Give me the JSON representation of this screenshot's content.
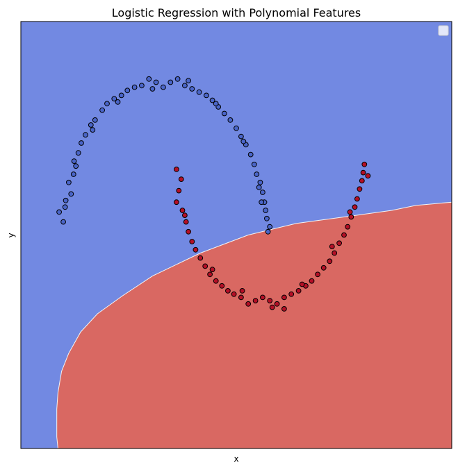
{
  "chart_data": {
    "type": "scatter",
    "title": "Logistic Regression with Polynomial Features",
    "xlabel": "x",
    "ylabel": "y",
    "xlim": [
      -1.3,
      2.3
    ],
    "ylim": [
      -1.2,
      1.4
    ],
    "xticks_visible": false,
    "yticks_visible": false,
    "grid": false,
    "legend": {
      "placement": "top-right",
      "entries": []
    },
    "background_regions": [
      {
        "class": 0,
        "color": "#7289e2"
      },
      {
        "class": 1,
        "color": "#d96862"
      }
    ],
    "decision_boundary": [
      [
        -0.99,
        -1.2
      ],
      [
        -1.0,
        -1.13
      ],
      [
        -1.0,
        -0.96
      ],
      [
        -0.99,
        -0.86
      ],
      [
        -0.96,
        -0.73
      ],
      [
        -0.9,
        -0.62
      ],
      [
        -0.8,
        -0.49
      ],
      [
        -0.66,
        -0.38
      ],
      [
        -0.45,
        -0.27
      ],
      [
        -0.2,
        -0.15
      ],
      [
        0.2,
        -0.01
      ],
      [
        0.6,
        0.1
      ],
      [
        1.0,
        0.17
      ],
      [
        1.4,
        0.21
      ],
      [
        1.8,
        0.25
      ],
      [
        2.0,
        0.28
      ],
      [
        2.3,
        0.3
      ]
    ],
    "series": [
      {
        "class": 0,
        "color": "#4a65c8",
        "points": [
          [
            -0.945,
            0.18
          ],
          [
            -0.925,
            0.31
          ],
          [
            -0.9,
            0.42
          ],
          [
            -0.855,
            0.55
          ],
          [
            -0.795,
            0.66
          ],
          [
            -0.715,
            0.77
          ],
          [
            -0.62,
            0.86
          ],
          [
            -0.52,
            0.93
          ],
          [
            -0.41,
            0.98
          ],
          [
            -0.29,
            1.01
          ],
          [
            -0.17,
            1.03
          ],
          [
            -0.05,
            1.03
          ],
          [
            0.07,
            1.01
          ],
          [
            0.19,
            0.97
          ],
          [
            0.3,
            0.92
          ],
          [
            0.4,
            0.84
          ],
          [
            0.5,
            0.75
          ],
          [
            0.58,
            0.65
          ],
          [
            0.65,
            0.53
          ],
          [
            0.7,
            0.42
          ],
          [
            0.735,
            0.3
          ],
          [
            0.755,
            0.2
          ],
          [
            0.765,
            0.12
          ],
          [
            -0.98,
            0.24
          ],
          [
            -0.88,
            0.35
          ],
          [
            -0.86,
            0.47
          ],
          [
            -0.82,
            0.6
          ],
          [
            -0.76,
            0.71
          ],
          [
            -0.68,
            0.8
          ],
          [
            -0.58,
            0.9
          ],
          [
            -0.46,
            0.95
          ],
          [
            -0.35,
            1.0
          ],
          [
            -0.23,
            1.05
          ],
          [
            -0.11,
            1.0
          ],
          [
            0.01,
            1.05
          ],
          [
            0.13,
            0.99
          ],
          [
            0.25,
            0.95
          ],
          [
            0.35,
            0.88
          ],
          [
            0.45,
            0.8
          ],
          [
            0.54,
            0.7
          ],
          [
            0.62,
            0.59
          ],
          [
            0.67,
            0.47
          ],
          [
            0.72,
            0.36
          ],
          [
            0.745,
            0.25
          ],
          [
            -0.93,
            0.27
          ],
          [
            -0.84,
            0.52
          ],
          [
            -0.7,
            0.74
          ],
          [
            -0.49,
            0.91
          ],
          [
            -0.2,
            0.99
          ],
          [
            0.1,
            1.04
          ],
          [
            0.33,
            0.9
          ],
          [
            0.56,
            0.67
          ],
          [
            0.69,
            0.39
          ],
          [
            0.71,
            0.3
          ],
          [
            0.78,
            0.15
          ]
        ]
      },
      {
        "class": 1,
        "color": "#b40f26",
        "points": [
          [
            0.0,
            0.5
          ],
          [
            0.02,
            0.37
          ],
          [
            0.05,
            0.25
          ],
          [
            0.1,
            0.12
          ],
          [
            0.16,
            0.01
          ],
          [
            0.24,
            -0.09
          ],
          [
            0.33,
            -0.18
          ],
          [
            0.43,
            -0.24
          ],
          [
            0.54,
            -0.28
          ],
          [
            0.66,
            -0.3
          ],
          [
            0.78,
            -0.3
          ],
          [
            0.9,
            -0.28
          ],
          [
            1.02,
            -0.24
          ],
          [
            1.13,
            -0.18
          ],
          [
            1.23,
            -0.1
          ],
          [
            1.32,
            -0.01
          ],
          [
            1.4,
            0.1
          ],
          [
            1.46,
            0.21
          ],
          [
            1.51,
            0.32
          ],
          [
            1.55,
            0.43
          ],
          [
            1.57,
            0.53
          ],
          [
            0.04,
            0.44
          ],
          [
            0.0,
            0.3
          ],
          [
            0.08,
            0.18
          ],
          [
            0.13,
            0.06
          ],
          [
            0.2,
            -0.04
          ],
          [
            0.28,
            -0.14
          ],
          [
            0.38,
            -0.21
          ],
          [
            0.48,
            -0.26
          ],
          [
            0.6,
            -0.32
          ],
          [
            0.72,
            -0.28
          ],
          [
            0.84,
            -0.32
          ],
          [
            0.96,
            -0.26
          ],
          [
            1.08,
            -0.21
          ],
          [
            1.18,
            -0.14
          ],
          [
            1.28,
            -0.06
          ],
          [
            1.36,
            0.05
          ],
          [
            1.43,
            0.15
          ],
          [
            1.49,
            0.27
          ],
          [
            1.53,
            0.38
          ],
          [
            1.56,
            0.48
          ],
          [
            0.07,
            0.22
          ],
          [
            0.3,
            -0.11
          ],
          [
            0.55,
            -0.24
          ],
          [
            0.8,
            -0.34
          ],
          [
            1.05,
            -0.2
          ],
          [
            1.3,
            0.03
          ],
          [
            1.45,
            0.24
          ],
          [
            1.6,
            0.46
          ],
          [
            0.9,
            -0.35
          ]
        ]
      }
    ]
  }
}
